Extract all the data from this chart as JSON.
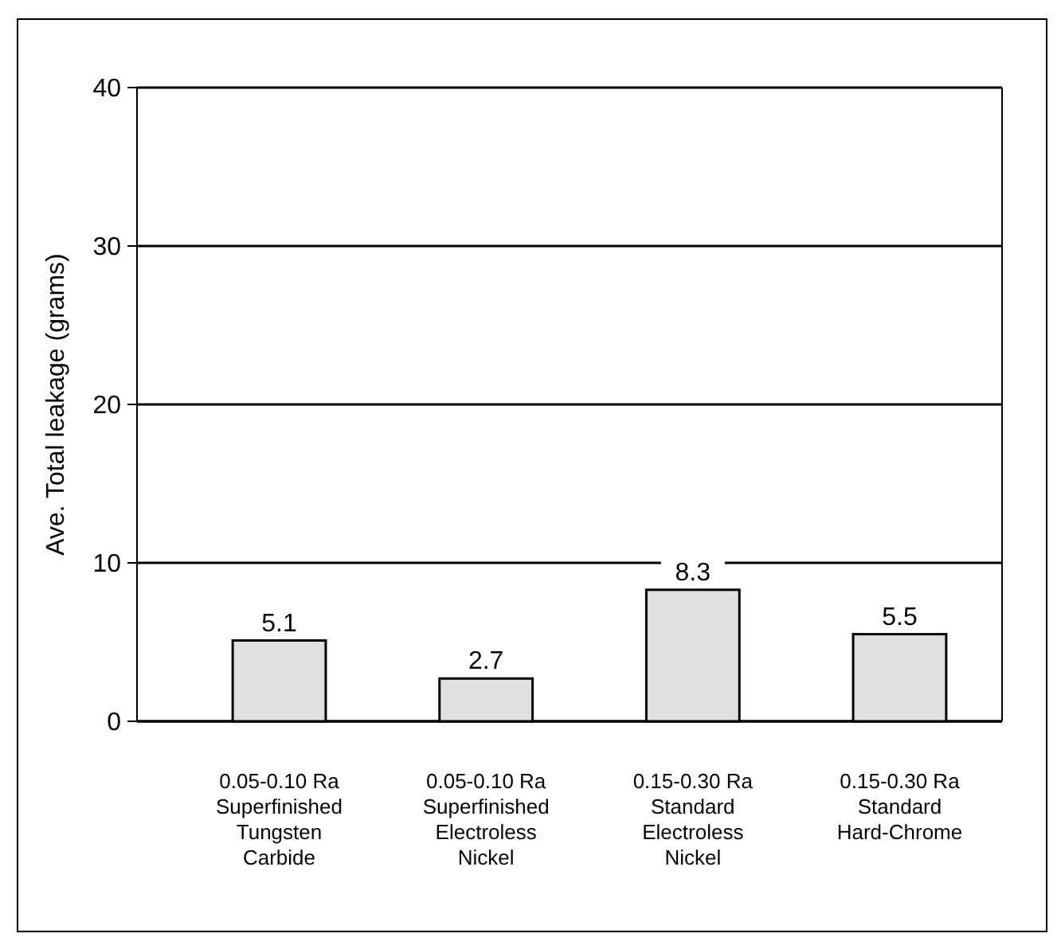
{
  "chart_data": {
    "type": "bar",
    "ylabel": "Ave. Total leakage (grams)",
    "categories": [
      "0.05-0.10 Ra\nSuperfinished\nTungsten\nCarbide",
      "0.05-0.10 Ra\nSuperfinished\nElectroless\nNickel",
      "0.15-0.30 Ra\nStandard\nElectroless\nNickel",
      "0.15-0.30 Ra\nStandard\nHard-Chrome"
    ],
    "values": [
      5.1,
      2.7,
      8.3,
      5.5
    ],
    "color": "#e0e0e0",
    "ylim": [
      0,
      40
    ],
    "yticks": [
      0,
      10,
      20,
      30,
      40
    ],
    "grid": "y",
    "data_labels": true
  }
}
